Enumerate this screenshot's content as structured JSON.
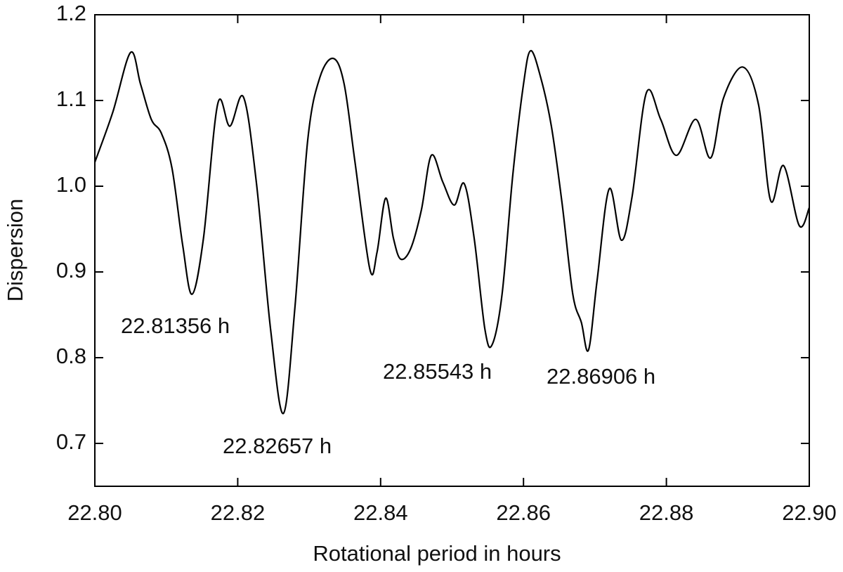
{
  "chart_data": {
    "type": "line",
    "xlabel": "Rotational period in hours",
    "ylabel": "Dispersion",
    "color": "#000000",
    "x": [
      22.8,
      22.8025,
      22.805,
      22.8064,
      22.8079,
      22.8093,
      22.8108,
      22.8123,
      22.8136,
      22.8152,
      22.8172,
      22.8189,
      22.8208,
      22.8226,
      22.8246,
      22.8264,
      22.828,
      22.8298,
      22.8315,
      22.8334,
      22.8349,
      22.8364,
      22.8385,
      22.8395,
      22.8407,
      22.8418,
      22.8428,
      22.8442,
      22.8457,
      22.8471,
      22.8487,
      22.8503,
      22.8517,
      22.8531,
      22.8546,
      22.8556,
      22.857,
      22.8585,
      22.86,
      22.861,
      22.8624,
      22.8639,
      22.8654,
      22.8669,
      22.8681,
      22.8691,
      22.8703,
      22.872,
      22.8737,
      22.8752,
      22.8772,
      22.8792,
      22.8814,
      22.8841,
      22.8862,
      22.888,
      22.8907,
      22.8929,
      22.8946,
      22.8964,
      22.8986,
      22.9
    ],
    "values": [
      1.028,
      1.086,
      1.156,
      1.119,
      1.078,
      1.062,
      1.021,
      0.931,
      0.874,
      0.939,
      1.096,
      1.07,
      1.104,
      1.005,
      0.833,
      0.735,
      0.858,
      1.054,
      1.127,
      1.149,
      1.119,
      1.029,
      0.903,
      0.923,
      0.986,
      0.939,
      0.915,
      0.927,
      0.972,
      1.036,
      1.005,
      0.978,
      1.003,
      0.939,
      0.833,
      0.815,
      0.874,
      1.013,
      1.119,
      1.158,
      1.127,
      1.07,
      0.98,
      0.874,
      0.841,
      0.809,
      0.89,
      0.997,
      0.937,
      0.988,
      1.109,
      1.078,
      1.036,
      1.078,
      1.033,
      1.103,
      1.139,
      1.095,
      0.983,
      1.024,
      0.954,
      0.975
    ],
    "annotations": [
      "22.81356 h",
      "22.82657 h",
      "22.85543 h",
      "22.86906 h"
    ],
    "xlim": [
      22.8,
      22.9
    ],
    "xticks": [
      {
        "value": 22.8,
        "label": "22.80"
      },
      {
        "value": 22.82,
        "label": "22.82"
      },
      {
        "value": 22.84,
        "label": "22.84"
      },
      {
        "value": 22.86,
        "label": "22.86"
      },
      {
        "value": 22.88,
        "label": "22.88"
      },
      {
        "value": 22.9,
        "label": "22.90"
      }
    ],
    "ylim": [
      0.65,
      1.2
    ],
    "yticks": [
      0.7,
      0.8,
      0.9,
      {
        "value": 1.0,
        "label": "1.0"
      },
      1.1,
      1.2
    ]
  }
}
